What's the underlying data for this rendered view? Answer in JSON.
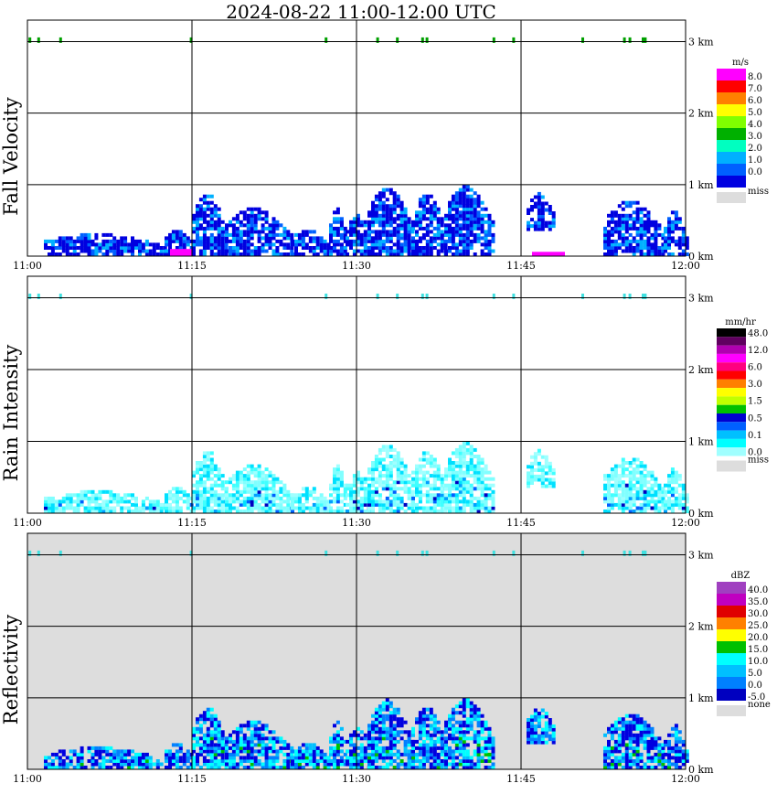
{
  "title": "2024-08-22  11:00-12:00 UTC",
  "chart_data": [
    {
      "type": "heatmap",
      "panel_title": "Fall Velocity",
      "units": "m/s",
      "x_ticks": [
        "11:00",
        "11:15",
        "11:30",
        "11:45",
        "12:00"
      ],
      "y_ticks": [
        "0 km",
        "1 km",
        "2 km",
        "3 km"
      ],
      "xlim": [
        "11:00",
        "12:00"
      ],
      "ylim_km": [
        0,
        3.3
      ],
      "grid": true,
      "colorbar": [
        {
          "label": "8.0",
          "color": "#ff00ff"
        },
        {
          "label": "7.0",
          "color": "#ff0000"
        },
        {
          "label": "6.0",
          "color": "#ff8000"
        },
        {
          "label": "5.0",
          "color": "#ffff00"
        },
        {
          "label": "4.0",
          "color": "#80ff00"
        },
        {
          "label": "3.0",
          "color": "#00b000"
        },
        {
          "label": "2.0",
          "color": "#00ffc0"
        },
        {
          "label": "1.0",
          "color": "#00b0ff"
        },
        {
          "label": "0.0",
          "color": "#0060ff"
        },
        {
          "label": "",
          "color": "#0000e0"
        },
        {
          "label": "miss",
          "color": "#dddddd",
          "missing": true
        }
      ],
      "background": "#ffffff",
      "echo_colors": [
        "#0000e0",
        "#0060ff",
        "#00b0ff",
        "#0000e0",
        "#0000e0"
      ],
      "highlight_color": "#ff00ff",
      "highlights": [
        {
          "t0": "11:13",
          "t1": "11:15",
          "h0": 0.0,
          "h1": 0.1
        },
        {
          "t0": "11:46",
          "t1": "11:49",
          "h0": 0.0,
          "h1": 0.06
        }
      ],
      "top_dots_color": "#00a000"
    },
    {
      "type": "heatmap",
      "panel_title": "Rain Intensity",
      "units": "mm/hr",
      "x_ticks": [
        "11:00",
        "11:15",
        "11:30",
        "11:45",
        "12:00"
      ],
      "y_ticks": [
        "0 km",
        "1 km",
        "2 km",
        "3 km"
      ],
      "xlim": [
        "11:00",
        "12:00"
      ],
      "ylim_km": [
        0,
        3.3
      ],
      "grid": true,
      "colorbar": [
        {
          "label": "48.0",
          "color": "#000000"
        },
        {
          "label": "",
          "color": "#600060"
        },
        {
          "label": "12.0",
          "color": "#b000b0"
        },
        {
          "label": "",
          "color": "#ff00ff"
        },
        {
          "label": "6.0",
          "color": "#ff0080"
        },
        {
          "label": "",
          "color": "#ff0000"
        },
        {
          "label": "3.0",
          "color": "#ff8000"
        },
        {
          "label": "",
          "color": "#ffff00"
        },
        {
          "label": "1.5",
          "color": "#c0ff00"
        },
        {
          "label": "",
          "color": "#00c000"
        },
        {
          "label": "0.5",
          "color": "#0000d0"
        },
        {
          "label": "",
          "color": "#0060ff"
        },
        {
          "label": "0.1",
          "color": "#00c0ff"
        },
        {
          "label": "",
          "color": "#00ffff"
        },
        {
          "label": "0.0",
          "color": "#a0ffff"
        },
        {
          "label": "miss",
          "color": "#dddddd",
          "missing": true
        }
      ],
      "background": "#ffffff",
      "echo_colors": [
        "#80ffff",
        "#a0ffff",
        "#40ffff",
        "#00e0ff",
        "#80ffff"
      ],
      "core_colors": [
        "#00a0ff",
        "#0060ff",
        "#0000c0"
      ],
      "top_dots_color": "#40e0e0"
    },
    {
      "type": "heatmap",
      "panel_title": "Reflectivity",
      "units": "dBZ",
      "x_ticks": [
        "11:00",
        "11:15",
        "11:30",
        "11:45",
        "12:00"
      ],
      "y_ticks": [
        "0 km",
        "1 km",
        "2 km",
        "3 km"
      ],
      "xlim": [
        "11:00",
        "12:00"
      ],
      "ylim_km": [
        0,
        3.3
      ],
      "grid": true,
      "colorbar": [
        {
          "label": "40.0",
          "color": "#a040c0"
        },
        {
          "label": "35.0",
          "color": "#c000c0"
        },
        {
          "label": "30.0",
          "color": "#e00000"
        },
        {
          "label": "25.0",
          "color": "#ff8000"
        },
        {
          "label": "20.0",
          "color": "#ffff00"
        },
        {
          "label": "15.0",
          "color": "#00c000"
        },
        {
          "label": "10.0",
          "color": "#00ffff"
        },
        {
          "label": "5.0",
          "color": "#00c0ff"
        },
        {
          "label": "0.0",
          "color": "#0080ff"
        },
        {
          "label": "-5.0",
          "color": "#0000c0"
        },
        {
          "label": "none",
          "color": "#dddddd",
          "missing": true
        }
      ],
      "background": "#dddddd",
      "echo_colors": [
        "#0000e0",
        "#0080ff",
        "#00c0ff",
        "#00ffff",
        "#0000e0"
      ],
      "core_colors": [
        "#00c000",
        "#00ffff"
      ],
      "top_dots_color": "#40e0e0"
    }
  ]
}
